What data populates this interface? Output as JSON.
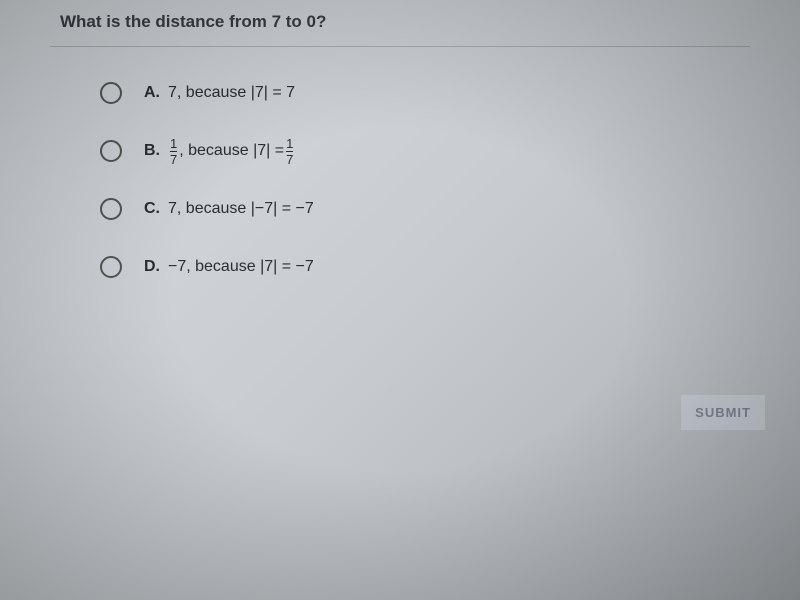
{
  "question": {
    "prompt": "What is the distance from 7 to 0?"
  },
  "options": {
    "a": {
      "letter": "A.",
      "text_before": "7, because |7| = 7"
    },
    "b": {
      "letter": "B.",
      "frac1_num": "1",
      "frac1_den": "7",
      "mid": ", because |7| = ",
      "frac2_num": "1",
      "frac2_den": "7"
    },
    "c": {
      "letter": "C.",
      "text_before": "7, because |−7| = −7"
    },
    "d": {
      "letter": "D.",
      "text_before": "−7, because |7| = −7"
    }
  },
  "submit": {
    "label": "SUBMIT"
  },
  "styles": {
    "question_fontsize": 17,
    "option_fontsize": 16,
    "text_color": "#2a2d32",
    "radio_border_color": "#555555",
    "divider_color": "#888888",
    "submit_bg": "rgba(200,205,215,0.7)",
    "submit_color": "#7a8090",
    "body_bg_start": "#d8dce0",
    "body_bg_end": "#a8acb0"
  }
}
